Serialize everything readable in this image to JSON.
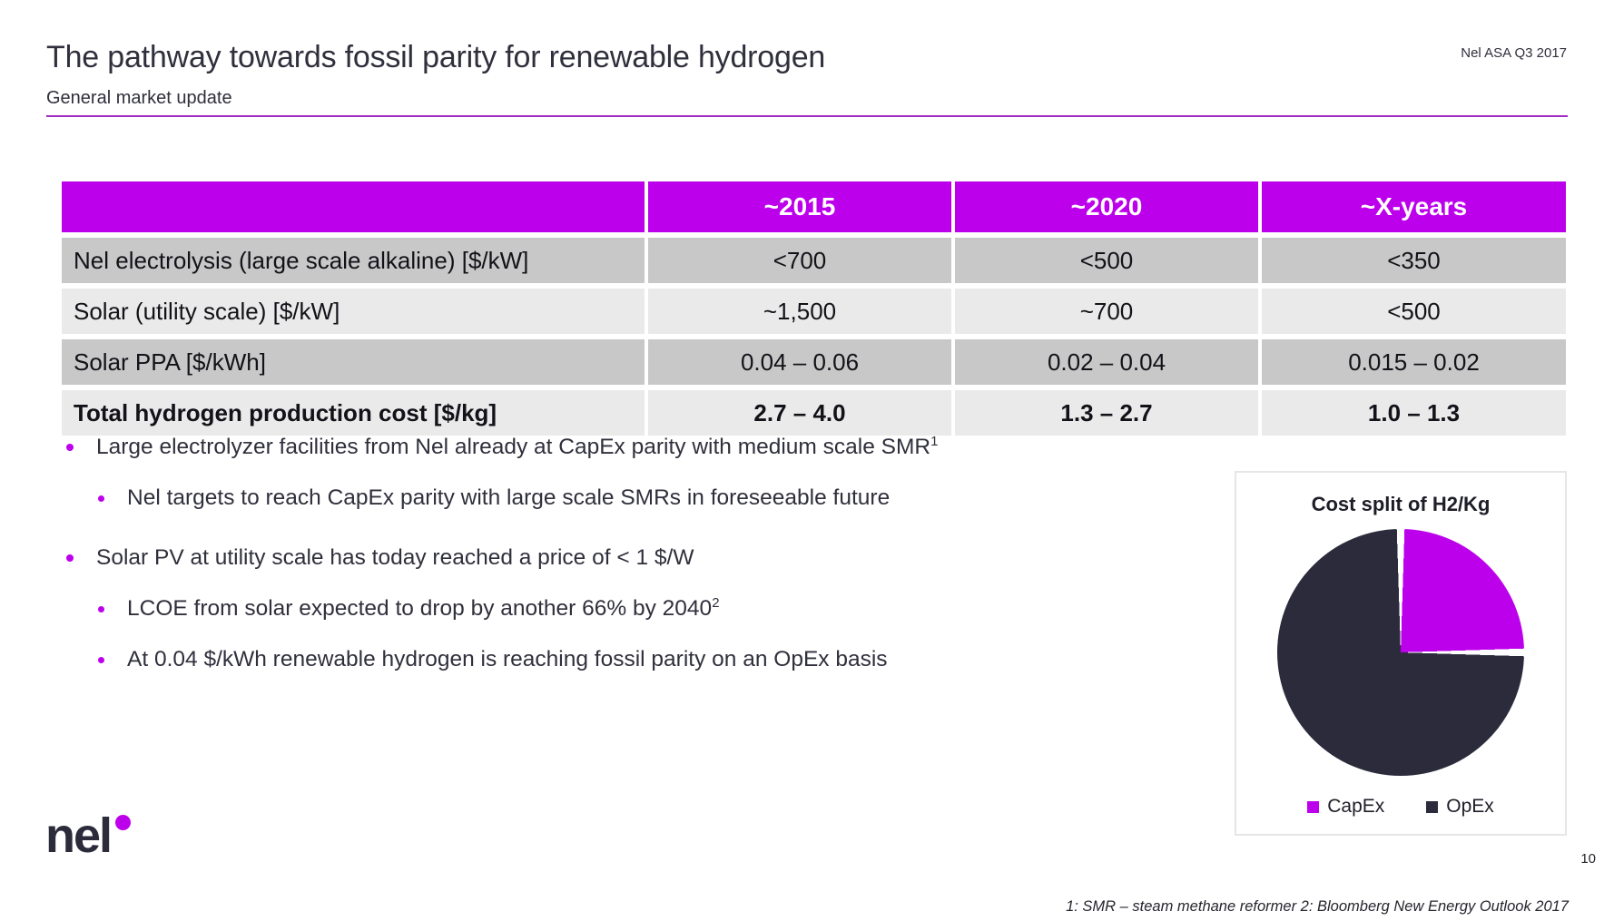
{
  "slide": {
    "title": "The pathway towards fossil parity for renewable hydrogen",
    "subtitle": "General market update",
    "header_right": "Nel ASA Q3 2017",
    "page_number": "10",
    "footnote": "1: SMR – steam methane reformer 2: Bloomberg New Energy Outlook 2017",
    "logo_text": "nel"
  },
  "colors": {
    "accent_magenta": "#bd00ec",
    "dark_navy": "#2b2b3b",
    "divider_purple": "#a32cc4",
    "row_dark_gray": "#c8c8c8",
    "row_light_gray": "#eaeaea",
    "text_dark": "#30303d"
  },
  "table": {
    "header": [
      "",
      "~2015",
      "~2020",
      "~X-years"
    ],
    "rows": [
      {
        "label": "Nel electrolysis (large scale alkaline) [$/kW]",
        "values": [
          "<700",
          "<500",
          "<350"
        ]
      },
      {
        "label": "Solar (utility scale) [$/kW]",
        "values": [
          "~1,500",
          "~700",
          "<500"
        ]
      },
      {
        "label": "Solar PPA [$/kWh]",
        "values": [
          "0.04 – 0.06",
          "0.02 – 0.04",
          "0.015 – 0.02"
        ]
      },
      {
        "label": "Total hydrogen production cost [$/kg]",
        "values": [
          "2.7 – 4.0",
          "1.3 – 2.7",
          "1.0 – 1.3"
        ]
      }
    ]
  },
  "bullets": [
    {
      "text": "Large electrolyzer facilities from Nel already at CapEx parity with medium scale SMR",
      "sup": "1"
    },
    {
      "text": "Nel targets to reach CapEx parity with large scale SMRs in foreseeable future"
    },
    {
      "text": "Solar PV at utility scale has today reached a price of < 1 $/W"
    },
    {
      "text": "LCOE from solar expected to drop by another 66% by 2040",
      "sup": "2"
    },
    {
      "text": "At 0.04 $/kWh renewable hydrogen is reaching fossil parity on an OpEx basis"
    }
  ],
  "chart_data": {
    "type": "pie",
    "title": "Cost split of H2/Kg",
    "labels": [
      "CapEx",
      "OpEx"
    ],
    "values": [
      25,
      75
    ],
    "colors": [
      "#bd00ec",
      "#2b2b3c"
    ],
    "legend_position": "bottom"
  }
}
